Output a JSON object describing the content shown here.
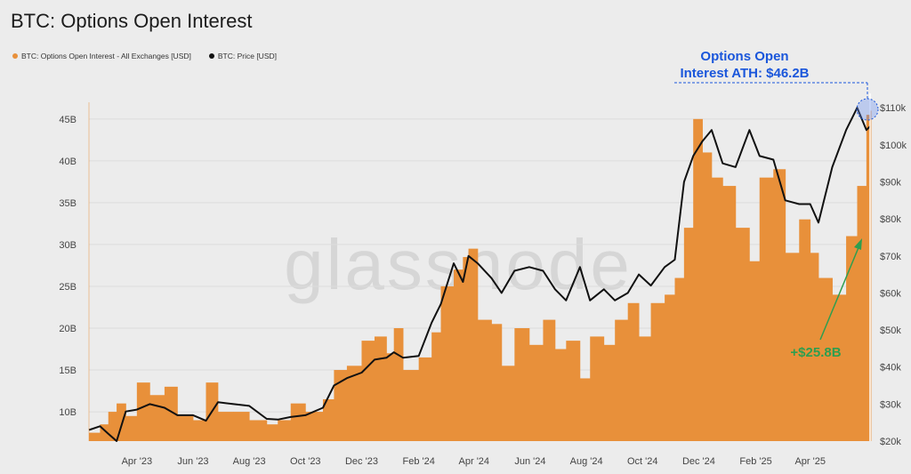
{
  "title": "BTC: Options Open Interest",
  "legend": [
    {
      "label": "BTC: Options Open Interest - All Exchanges [USD]",
      "color": "#e8903a"
    },
    {
      "label": "BTC: Price [USD]",
      "color": "#111111"
    }
  ],
  "watermark": "glassnode",
  "annotations": {
    "ath_line1": "Options Open",
    "ath_line2": "Interest ATH: $46.2B",
    "increase": "+$25.8B"
  },
  "colors": {
    "oi": "#e8903a",
    "price": "#111111",
    "ath": "#1a56db",
    "increase": "#2e9e4f"
  },
  "chart_data": {
    "type": "area",
    "title": "BTC: Options Open Interest",
    "x_tick_labels": [
      "Apr '23",
      "Jun '23",
      "Aug '23",
      "Oct '23",
      "Dec '23",
      "Feb '24",
      "Apr '24",
      "Jun '24",
      "Aug '24",
      "Oct '24",
      "Dec '24",
      "Feb '25",
      "Apr '25"
    ],
    "x_tick_dates": [
      "2023-04-01",
      "2023-06-01",
      "2023-08-01",
      "2023-10-01",
      "2023-12-01",
      "2024-02-01",
      "2024-04-01",
      "2024-06-01",
      "2024-08-01",
      "2024-10-01",
      "2024-12-01",
      "2025-02-01",
      "2025-04-01"
    ],
    "x_range": [
      "2023-02-08",
      "2025-06-05"
    ],
    "left_axis": {
      "ticks": [
        "10B",
        "15B",
        "20B",
        "25B",
        "30B",
        "35B",
        "40B",
        "45B"
      ],
      "values": [
        10,
        15,
        20,
        25,
        30,
        35,
        40,
        45
      ],
      "range": [
        6.5,
        47
      ]
    },
    "right_axis": {
      "ticks": [
        "$20k",
        "$30k",
        "$40k",
        "$50k",
        "$60k",
        "$70k",
        "$80k",
        "$90k",
        "$100k",
        "$110k"
      ],
      "values": [
        20,
        30,
        40,
        50,
        60,
        70,
        80,
        90,
        100,
        110
      ],
      "range": [
        20,
        111.5
      ],
      "scale": "linear"
    },
    "grid": true,
    "series": [
      {
        "name": "BTC: Options Open Interest - All Exchanges [USD]",
        "axis": "left",
        "unit": "B USD",
        "x": [
          "2023-02-08",
          "2023-02-20",
          "2023-03-01",
          "2023-03-10",
          "2023-03-20",
          "2023-04-01",
          "2023-04-15",
          "2023-05-01",
          "2023-05-15",
          "2023-06-01",
          "2023-06-15",
          "2023-06-28",
          "2023-07-15",
          "2023-08-01",
          "2023-08-20",
          "2023-09-01",
          "2023-09-15",
          "2023-10-01",
          "2023-10-20",
          "2023-11-01",
          "2023-11-15",
          "2023-12-01",
          "2023-12-15",
          "2023-12-28",
          "2024-01-05",
          "2024-01-15",
          "2024-02-01",
          "2024-02-15",
          "2024-02-25",
          "2024-03-10",
          "2024-03-20",
          "2024-03-26",
          "2024-04-05",
          "2024-04-20",
          "2024-05-01",
          "2024-05-15",
          "2024-05-31",
          "2024-06-15",
          "2024-06-28",
          "2024-07-10",
          "2024-07-25",
          "2024-08-05",
          "2024-08-20",
          "2024-09-01",
          "2024-09-15",
          "2024-09-27",
          "2024-10-10",
          "2024-10-25",
          "2024-11-05",
          "2024-11-15",
          "2024-11-25",
          "2024-12-05",
          "2024-12-15",
          "2024-12-27",
          "2025-01-10",
          "2025-01-25",
          "2025-02-05",
          "2025-02-20",
          "2025-03-05",
          "2025-03-20",
          "2025-04-01",
          "2025-04-10",
          "2025-04-25",
          "2025-05-10",
          "2025-05-22",
          "2025-06-01",
          "2025-06-05"
        ],
        "values": [
          7.5,
          8.5,
          10,
          11,
          9.5,
          13.5,
          12,
          13,
          9.5,
          9,
          13.5,
          10,
          10,
          9,
          8.5,
          9,
          11,
          10,
          11.5,
          15,
          15.5,
          18.5,
          19,
          17,
          20,
          15,
          16.5,
          19.5,
          25,
          27,
          28.5,
          29.5,
          21,
          20.5,
          15.5,
          20,
          18,
          21,
          17.5,
          18.5,
          14,
          19,
          18,
          21,
          23,
          19,
          23,
          24,
          26,
          32,
          45,
          41,
          38,
          37,
          32,
          28,
          38,
          39,
          29,
          33,
          29,
          26,
          24,
          31,
          37,
          45.5,
          46
        ]
      },
      {
        "name": "BTC: Price [USD]",
        "axis": "right",
        "unit": "k USD",
        "x": [
          "2023-02-08",
          "2023-02-20",
          "2023-03-01",
          "2023-03-10",
          "2023-03-20",
          "2023-04-01",
          "2023-04-15",
          "2023-05-01",
          "2023-05-15",
          "2023-06-01",
          "2023-06-15",
          "2023-06-28",
          "2023-07-15",
          "2023-08-01",
          "2023-08-20",
          "2023-09-01",
          "2023-09-15",
          "2023-10-01",
          "2023-10-20",
          "2023-11-01",
          "2023-11-15",
          "2023-12-01",
          "2023-12-15",
          "2023-12-28",
          "2024-01-05",
          "2024-01-15",
          "2024-02-01",
          "2024-02-15",
          "2024-02-25",
          "2024-03-10",
          "2024-03-20",
          "2024-03-26",
          "2024-04-05",
          "2024-04-20",
          "2024-05-01",
          "2024-05-15",
          "2024-05-31",
          "2024-06-15",
          "2024-06-28",
          "2024-07-10",
          "2024-07-25",
          "2024-08-05",
          "2024-08-20",
          "2024-09-01",
          "2024-09-15",
          "2024-09-27",
          "2024-10-10",
          "2024-10-25",
          "2024-11-05",
          "2024-11-15",
          "2024-11-25",
          "2024-12-05",
          "2024-12-15",
          "2024-12-27",
          "2025-01-10",
          "2025-01-25",
          "2025-02-05",
          "2025-02-20",
          "2025-03-05",
          "2025-03-20",
          "2025-04-01",
          "2025-04-10",
          "2025-04-25",
          "2025-05-10",
          "2025-05-22",
          "2025-06-01",
          "2025-06-05"
        ],
        "values": [
          23,
          24,
          22,
          20,
          28,
          28.5,
          30,
          29,
          27,
          27,
          25.5,
          30.5,
          30,
          29.5,
          26,
          25.8,
          26.5,
          27,
          29,
          35,
          37,
          38.5,
          42,
          42.5,
          44,
          42.5,
          43,
          52,
          57,
          68,
          63,
          70,
          68,
          64,
          60,
          66,
          67,
          66,
          61,
          58,
          67,
          58,
          61,
          58,
          60,
          65,
          62,
          67,
          69,
          90,
          97,
          101,
          104,
          95,
          94,
          104,
          97,
          96,
          85,
          84,
          84,
          79,
          94,
          104,
          110,
          104,
          105
        ]
      }
    ]
  }
}
